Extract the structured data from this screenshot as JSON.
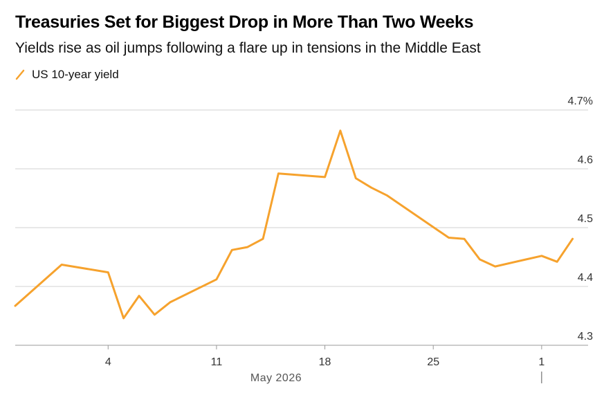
{
  "title": "Treasuries Set for Biggest Drop in More Than Two Weeks",
  "subtitle": "Yields rise as oil jumps following a flare up in tensions in the Middle East",
  "legend": {
    "label": "US 10-year yield"
  },
  "colors": {
    "series": "#f6a22d",
    "grid": "#d0d0d0",
    "axis": "#999999"
  },
  "chart_data": {
    "type": "line",
    "series": [
      {
        "name": "US 10-year yield",
        "x": [
          "2026-04-28",
          "2026-05-01",
          "2026-05-04",
          "2026-05-05",
          "2026-05-06",
          "2026-05-07",
          "2026-05-08",
          "2026-05-11",
          "2026-05-12",
          "2026-05-13",
          "2026-05-14",
          "2026-05-15",
          "2026-05-18",
          "2026-05-19",
          "2026-05-20",
          "2026-05-21",
          "2026-05-22",
          "2026-05-26",
          "2026-05-27",
          "2026-05-28",
          "2026-05-29",
          "2026-06-01",
          "2026-06-02",
          "2026-06-03"
        ],
        "y": [
          4.367,
          4.437,
          4.424,
          4.346,
          4.384,
          4.352,
          4.373,
          4.412,
          4.462,
          4.467,
          4.481,
          4.592,
          4.586,
          4.665,
          4.584,
          4.568,
          4.555,
          4.483,
          4.481,
          4.446,
          4.434,
          4.452,
          4.442,
          4.481
        ]
      }
    ],
    "x_ticks": [
      {
        "date": "2026-05-04",
        "label": "4"
      },
      {
        "date": "2026-05-11",
        "label": "11"
      },
      {
        "date": "2026-05-18",
        "label": "18"
      },
      {
        "date": "2026-05-25",
        "label": "25"
      },
      {
        "date": "2026-06-01",
        "label": "1"
      }
    ],
    "x_month_label": "May 2026",
    "y_ticks": [
      {
        "value": 4.3,
        "label": "4.3"
      },
      {
        "value": 4.4,
        "label": "4.4"
      },
      {
        "value": 4.5,
        "label": "4.5"
      },
      {
        "value": 4.6,
        "label": "4.6"
      },
      {
        "value": 4.7,
        "label": "4.7%"
      }
    ],
    "ylim": [
      4.3,
      4.7
    ],
    "xlim": [
      "2026-04-28",
      "2026-06-04"
    ],
    "y_axis_side": "right",
    "grid": true,
    "legend_position": "top-left"
  }
}
